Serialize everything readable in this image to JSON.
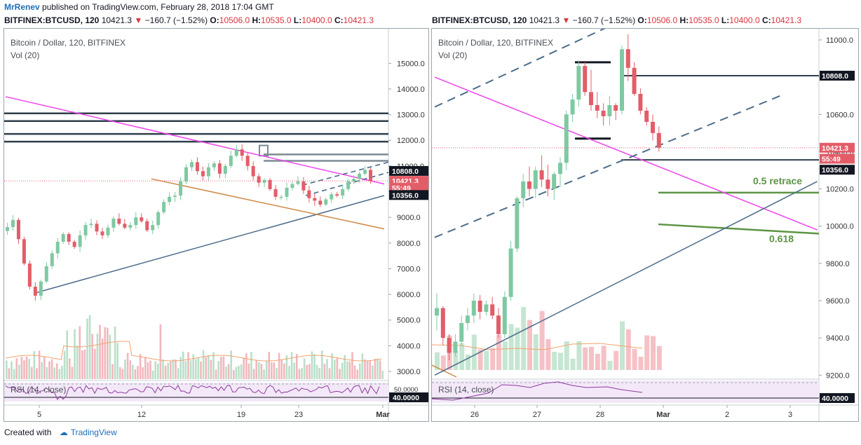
{
  "header": {
    "author": "MrRenev",
    "published": "published on TradingView.com, February 28, 2018 17:04 GMT"
  },
  "ohlc": {
    "symbol": "BITFINEX:BTCUSD, 120",
    "last": "10421.3",
    "change": "−160.7 (−1.52%)",
    "o_label": "O:",
    "o": "10506.0",
    "h_label": "H:",
    "h": "10535.0",
    "l_label": "L:",
    "l": "10400.0",
    "c_label": "C:",
    "c": "10421.3"
  },
  "footer": {
    "created": "Created with",
    "brand": "TradingView"
  },
  "colors": {
    "up": "#7fc9a2",
    "down": "#e35d68",
    "magenta": "#ee44ee",
    "levels": "#2f3f4b",
    "trend": "#4c6c8a",
    "green_level": "#5c9444",
    "orange": "#d08844",
    "rsi": "#8e3a9e"
  },
  "chart_data": [
    {
      "type": "line",
      "title": "Bitcoin / Dollar, 120, BITFINEX",
      "subtitle": "Vol (20)",
      "x_ticks": [
        "5",
        "12",
        "19",
        "23",
        "Mar"
      ],
      "y_ticks": [
        "15000.0",
        "14000.0",
        "13000.0",
        "12000.0",
        "11000.0",
        "10000.0",
        "9000.0",
        "8000.0",
        "7000.0",
        "6000.0",
        "5000.0",
        "4000.0",
        "3000.0"
      ],
      "ylim": [
        2700,
        15800
      ],
      "price_tags": [
        "10808.0",
        "10421.3",
        "55:49",
        "10356.0"
      ],
      "rsi_label": "RSI (14, close)",
      "rsi_level": "40.0000",
      "rsi_mid_tag": "50.0000",
      "close_series": [
        8620,
        8900,
        8150,
        7200,
        6300,
        5950,
        6500,
        7100,
        7600,
        8050,
        8350,
        8050,
        7850,
        8300,
        8700,
        8750,
        8450,
        8300,
        8600,
        8950,
        8750,
        8600,
        8700,
        9000,
        8850,
        8500,
        8700,
        9200,
        9600,
        9800,
        9850,
        10400,
        10950,
        11150,
        10800,
        10600,
        10950,
        11100,
        10700,
        11000,
        11400,
        11650,
        11400,
        11000,
        10600,
        10350,
        10450,
        10100,
        9800,
        9800,
        10150,
        10300,
        10400,
        10050,
        9750,
        9650,
        9500,
        9700,
        9900,
        9850,
        10100,
        10400,
        10500,
        10700,
        10850,
        10421
      ],
      "resistance_levels": [
        13050,
        12750,
        12250,
        11950
      ],
      "gray_levels": [
        11450,
        11200
      ],
      "magenta_trend": [
        [
          0,
          13700
        ],
        [
          78,
          10300
        ]
      ],
      "blue_trend": [
        [
          6,
          6050
        ],
        [
          78,
          9850
        ]
      ],
      "orange_trend": [
        [
          30,
          10500
        ],
        [
          78,
          8550
        ]
      ]
    },
    {
      "type": "line",
      "title": "Bitcoin / Dollar, 120, BITFINEX",
      "subtitle": "Vol (20)",
      "x_ticks": [
        "26",
        "27",
        "28",
        "Mar",
        "2",
        "3"
      ],
      "y_ticks": [
        "11000.0",
        "10800.0",
        "10600.0",
        "10400.0",
        "10200.0",
        "10000.0",
        "9800.0",
        "9600.0",
        "9400.0",
        "9200.0"
      ],
      "ylim": [
        9190,
        11060
      ],
      "price_tags": [
        "10808.0",
        "10421.3",
        "55:49",
        "10356.0"
      ],
      "rsi_label": "RSI (14, close)",
      "rsi_level": "40.0000",
      "candles": [
        [
          9520,
          9640,
          9440,
          9560
        ],
        [
          9560,
          9570,
          9360,
          9400
        ],
        [
          9400,
          9420,
          9280,
          9320
        ],
        [
          9320,
          9420,
          9300,
          9380
        ],
        [
          9380,
          9520,
          9360,
          9480
        ],
        [
          9480,
          9560,
          9440,
          9520
        ],
        [
          9520,
          9640,
          9480,
          9600
        ],
        [
          9600,
          9630,
          9500,
          9540
        ],
        [
          9540,
          9600,
          9520,
          9580
        ],
        [
          9580,
          9620,
          9500,
          9520
        ],
        [
          9520,
          9560,
          9400,
          9420
        ],
        [
          9420,
          9650,
          9400,
          9620
        ],
        [
          9620,
          9920,
          9600,
          9880
        ],
        [
          9880,
          10160,
          9860,
          10150
        ],
        [
          10150,
          10280,
          10100,
          10240
        ],
        [
          10240,
          10320,
          10160,
          10200
        ],
        [
          10200,
          10320,
          10150,
          10300
        ],
        [
          10300,
          10380,
          10210,
          10250
        ],
        [
          10250,
          10330,
          10160,
          10200
        ],
        [
          10200,
          10290,
          10140,
          10280
        ],
        [
          10280,
          10370,
          10210,
          10340
        ],
        [
          10340,
          10620,
          10300,
          10600
        ],
        [
          10600,
          10710,
          10560,
          10680
        ],
        [
          10680,
          10890,
          10640,
          10860
        ],
        [
          10860,
          10880,
          10700,
          10720
        ],
        [
          10720,
          10840,
          10620,
          10650
        ],
        [
          10650,
          10720,
          10580,
          10620
        ],
        [
          10620,
          10660,
          10540,
          10590
        ],
        [
          10590,
          10700,
          10540,
          10650
        ],
        [
          10650,
          10660,
          10570,
          10620
        ],
        [
          10620,
          10970,
          10600,
          10950
        ],
        [
          10950,
          11030,
          10780,
          10850
        ],
        [
          10850,
          10880,
          10700,
          10710
        ],
        [
          10710,
          10740,
          10600,
          10620
        ],
        [
          10620,
          10640,
          10540,
          10560
        ],
        [
          10560,
          10600,
          10460,
          10500
        ],
        [
          10500,
          10535,
          10400,
          10421
        ]
      ],
      "resistance_level": 10808,
      "support_level": 10356,
      "box_top": 10880,
      "box_bottom": 10470,
      "fib_levels": [
        {
          "label": "0.5  retrace",
          "value": 10180
        },
        {
          "label": "0.618",
          "value": 9990
        }
      ],
      "magenta_trend": [
        [
          0,
          10800
        ],
        [
          62,
          9980
        ]
      ],
      "blue_trend": [
        [
          0,
          9200
        ],
        [
          62,
          10240
        ]
      ],
      "channel_upper": [
        [
          0,
          10640
        ],
        [
          32,
          11130
        ]
      ],
      "channel_lower": [
        [
          0,
          9940
        ],
        [
          56,
          10700
        ]
      ]
    }
  ]
}
